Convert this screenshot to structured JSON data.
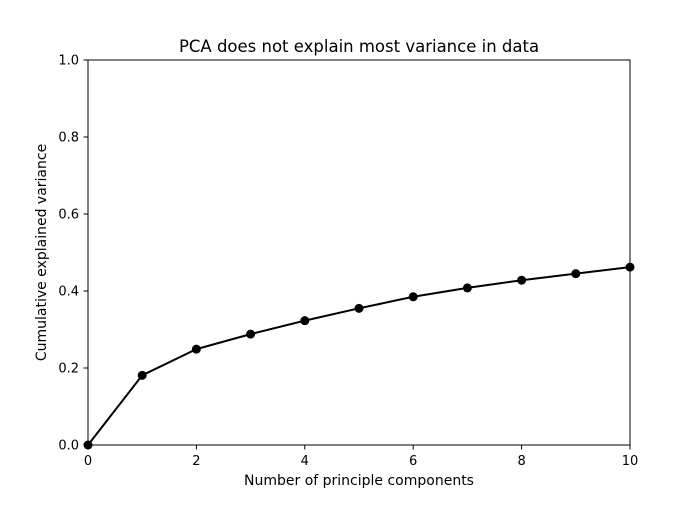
{
  "chart_data": {
    "type": "line",
    "title": "PCA does not explain most variance in data",
    "xlabel": "Number of principle components",
    "ylabel": "Cumulative explained variance",
    "xlim": [
      0,
      10
    ],
    "ylim": [
      0.0,
      1.0
    ],
    "x_ticks": [
      "0",
      "2",
      "4",
      "6",
      "8",
      "10"
    ],
    "y_ticks": [
      "0.0",
      "0.2",
      "0.4",
      "0.6",
      "0.8",
      "1.0"
    ],
    "grid": false,
    "legend": "none",
    "series": [
      {
        "x": [
          0,
          1,
          2,
          3,
          4,
          5,
          6,
          7,
          8,
          9,
          10
        ],
        "y": [
          0.0,
          0.181,
          0.249,
          0.288,
          0.323,
          0.355,
          0.385,
          0.408,
          0.428,
          0.445,
          0.462
        ],
        "color": "#000000",
        "marker": "circle"
      }
    ]
  }
}
